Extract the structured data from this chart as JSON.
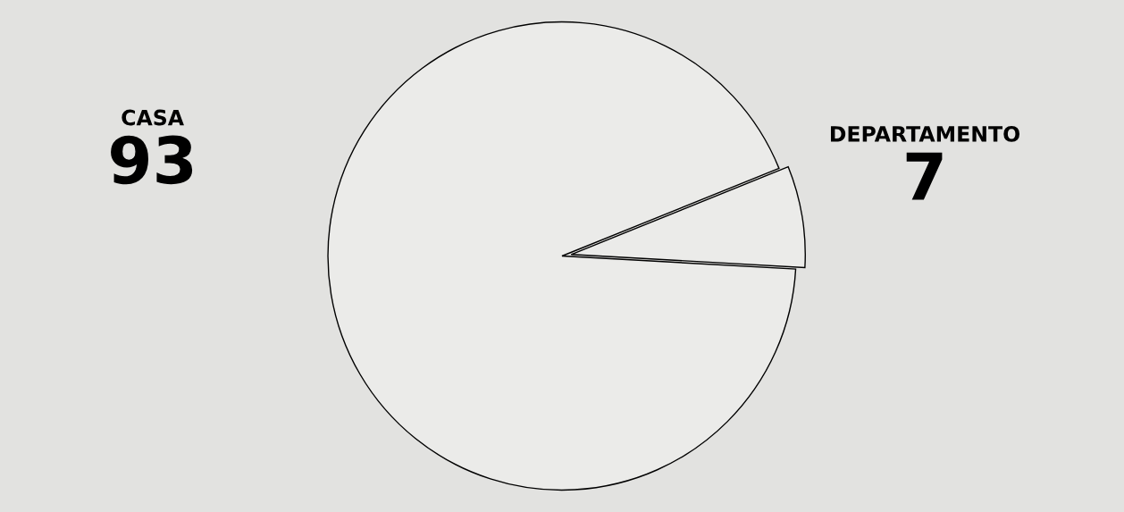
{
  "chart_data": {
    "type": "pie",
    "categories": [
      "CASA",
      "DEPARTAMENTO"
    ],
    "values": [
      93,
      7
    ],
    "colors": [
      "#ebebe9",
      "#ebebe9"
    ],
    "data_labels": true
  }
}
